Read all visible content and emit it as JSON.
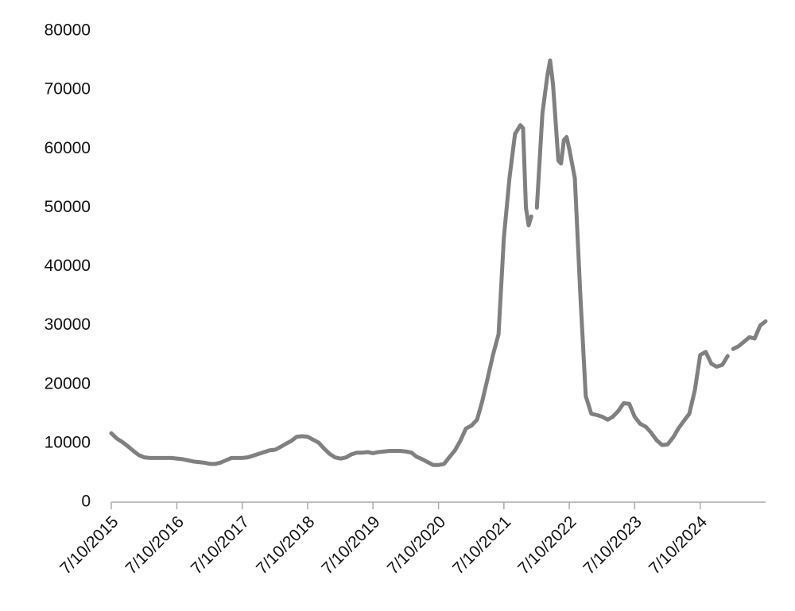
{
  "chart_data": {
    "type": "line",
    "x": [
      "7/10/2015",
      "8/10/2015",
      "9/10/2015",
      "10/10/2015",
      "11/10/2015",
      "12/10/2015",
      "1/10/2016",
      "2/10/2016",
      "3/10/2016",
      "4/10/2016",
      "5/10/2016",
      "6/10/2016",
      "7/10/2016",
      "8/10/2016",
      "9/10/2016",
      "10/10/2016",
      "11/10/2016",
      "12/10/2016",
      "1/10/2017",
      "2/10/2017",
      "3/10/2017",
      "4/10/2017",
      "5/10/2017",
      "6/10/2017",
      "7/10/2017",
      "8/10/2017",
      "9/10/2017",
      "10/10/2017",
      "11/10/2017",
      "12/10/2017",
      "1/10/2018",
      "2/10/2018",
      "3/10/2018",
      "4/10/2018",
      "5/10/2018",
      "6/10/2018",
      "7/10/2018",
      "8/10/2018",
      "9/10/2018",
      "10/10/2018",
      "11/10/2018",
      "12/10/2018",
      "1/10/2019",
      "2/10/2019",
      "3/10/2019",
      "4/10/2019",
      "5/10/2019",
      "6/10/2019",
      "7/10/2019",
      "8/10/2019",
      "9/10/2019",
      "10/10/2019",
      "11/10/2019",
      "12/10/2019",
      "1/10/2020",
      "2/10/2020",
      "3/10/2020",
      "4/10/2020",
      "5/10/2020",
      "6/10/2020",
      "7/10/2020",
      "8/10/2020",
      "9/10/2020",
      "10/10/2020",
      "11/10/2020",
      "12/10/2020",
      "1/10/2021",
      "2/10/2021",
      "3/10/2021",
      "4/10/2021",
      "5/10/2021",
      "6/10/2021",
      "7/10/2021",
      "8/10/2021",
      "9/10/2021",
      "10/10/2021",
      "10/25/2021",
      "11/10/2021",
      "11/25/2021",
      "12/10/2021",
      "12/25/2021",
      "1/10/2022",
      "2/10/2022",
      "3/10/2022",
      "3/25/2022",
      "4/10/2022",
      "5/10/2022",
      "5/25/2022",
      "6/10/2022",
      "6/25/2022",
      "7/10/2022",
      "8/10/2022",
      "9/10/2022",
      "10/10/2022",
      "11/10/2022",
      "12/10/2022",
      "1/10/2023",
      "2/10/2023",
      "3/10/2023",
      "4/10/2023",
      "5/10/2023",
      "6/10/2023",
      "7/10/2023",
      "8/10/2023",
      "9/10/2023",
      "10/10/2023",
      "11/10/2023",
      "12/10/2023",
      "1/10/2024",
      "2/10/2024",
      "3/10/2024",
      "4/10/2024",
      "5/10/2024",
      "6/10/2024",
      "7/10/2024",
      "8/10/2024",
      "9/10/2024",
      "10/10/2024",
      "11/10/2024",
      "12/10/2024",
      "12/25/2024",
      "1/10/2025",
      "2/10/2025",
      "3/10/2025",
      "4/10/2025",
      "5/10/2025",
      "6/10/2025",
      "7/10/2025"
    ],
    "series": [
      {
        "color": "#808080",
        "values": [
          11700,
          10800,
          10200,
          9500,
          8700,
          8000,
          7600,
          7500,
          7500,
          7500,
          7500,
          7500,
          7400,
          7300,
          7100,
          6900,
          6800,
          6700,
          6500,
          6500,
          6700,
          7100,
          7500,
          7500,
          7500,
          7600,
          7900,
          8200,
          8500,
          8800,
          8900,
          9400,
          9900,
          10400,
          11100,
          11200,
          11100,
          10600,
          10100,
          9100,
          8200,
          7600,
          7400,
          7600,
          8100,
          8400,
          8400,
          8500,
          8300,
          8500,
          8600,
          8700,
          8700,
          8700,
          8600,
          8400,
          7700,
          7300,
          6800,
          6300,
          6300,
          6500,
          7700,
          8800,
          10500,
          12500,
          13000,
          14000,
          17000,
          21000,
          25000,
          28500,
          45000,
          55000,
          62500,
          64000,
          63500,
          50000,
          47000,
          48500,
          null,
          50000,
          66000,
          72500,
          75000,
          71000,
          58000,
          57500,
          61500,
          62000,
          60000,
          55000,
          35000,
          18000,
          15000,
          14800,
          14500,
          14000,
          14500,
          15500,
          16800,
          16700,
          14500,
          13300,
          12800,
          11800,
          10500,
          9700,
          9800,
          11000,
          12500,
          13800,
          15000,
          19000,
          25000,
          25500,
          23500,
          23000,
          23300,
          24800,
          null,
          26000,
          26500,
          27200,
          28000,
          27800,
          30000,
          30700
        ]
      }
    ],
    "xlim": [
      "7/10/2015",
      "7/10/2025"
    ],
    "xticks": [
      "7/10/2015",
      "7/10/2016",
      "7/10/2017",
      "7/10/2018",
      "7/10/2019",
      "7/10/2020",
      "7/10/2021",
      "7/10/2022",
      "7/10/2023",
      "7/10/2024"
    ],
    "ylim": [
      0,
      80000
    ],
    "yticks": [
      0,
      10000,
      20000,
      30000,
      40000,
      50000,
      60000,
      70000,
      80000
    ],
    "grid": false
  }
}
